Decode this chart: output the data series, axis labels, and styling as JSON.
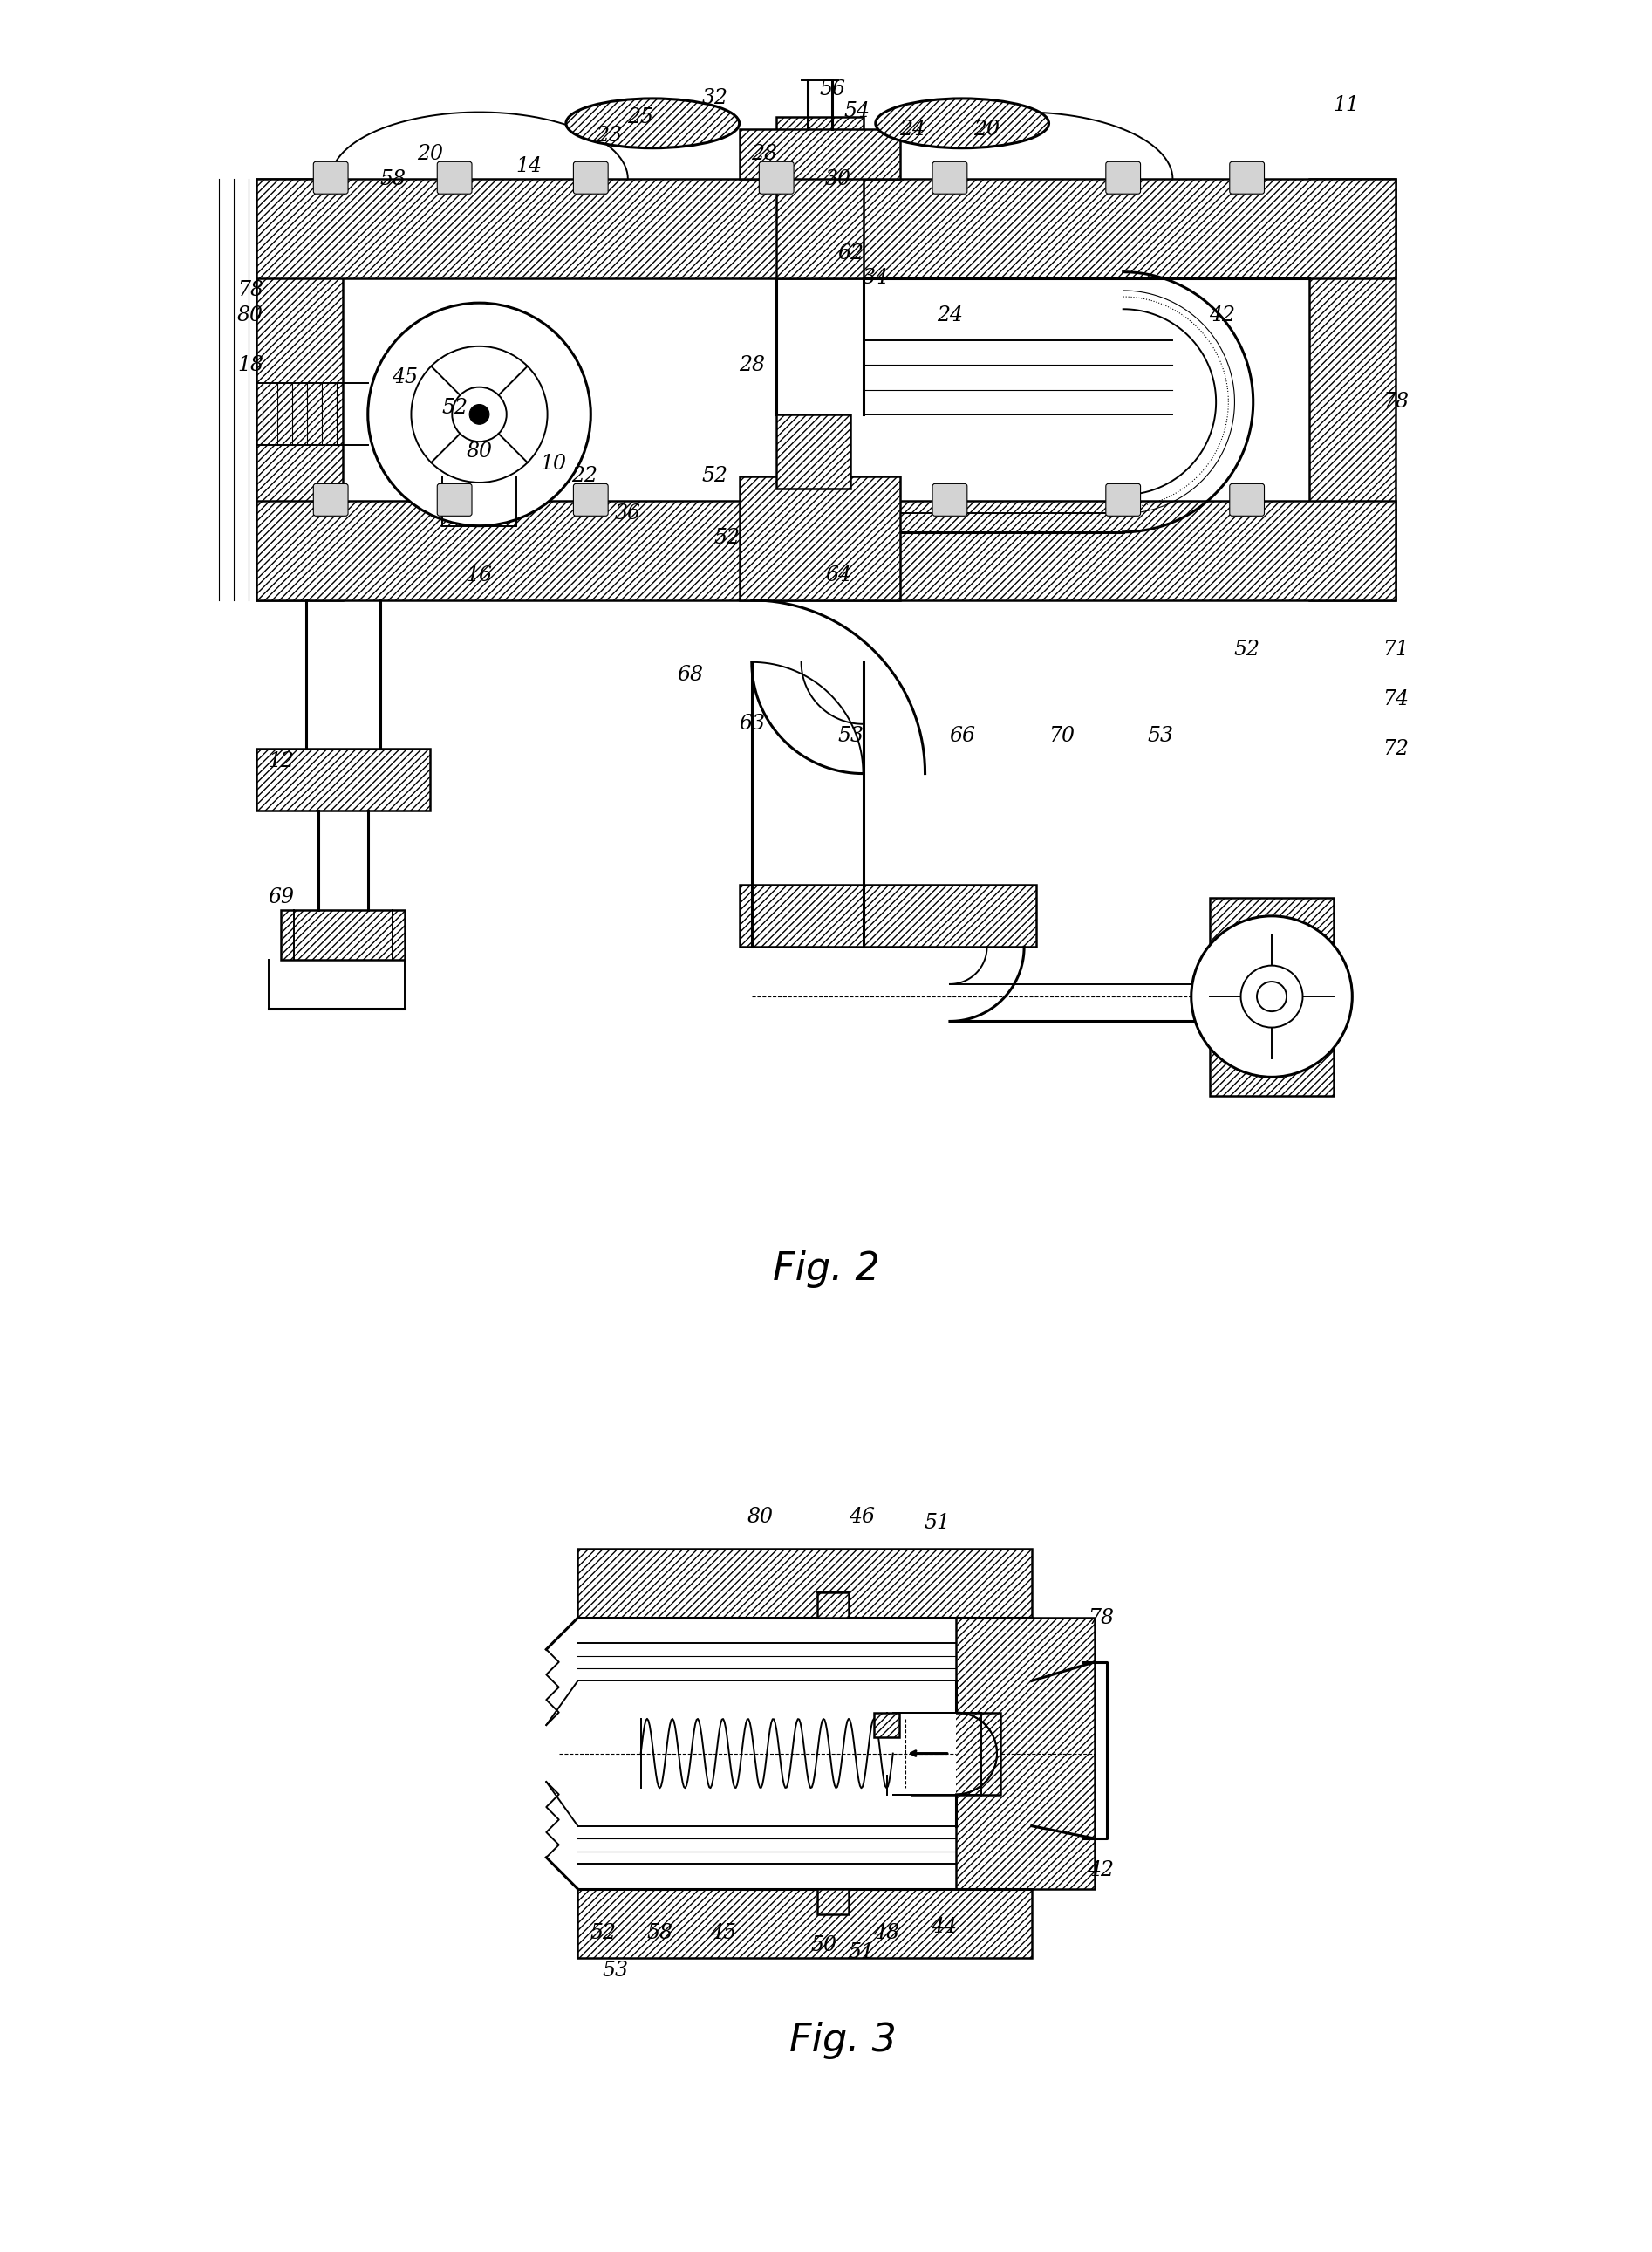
{
  "bg_color": "#ffffff",
  "lc": "#000000",
  "fig2_caption": "Fig. 2",
  "fig3_caption": "Fig. 3",
  "caption_fontsize": 32,
  "label_fontsize": 17,
  "lw_thick": 2.2,
  "lw_med": 1.4,
  "lw_thin": 0.8,
  "fig2_labels": [
    [
      50.5,
      98.2,
      "56"
    ],
    [
      52.5,
      96.5,
      "54"
    ],
    [
      41,
      97.5,
      "32"
    ],
    [
      35,
      96,
      "25"
    ],
    [
      32.5,
      94.5,
      "23"
    ],
    [
      57,
      95,
      "24"
    ],
    [
      63,
      95,
      "20"
    ],
    [
      92,
      97,
      "11"
    ],
    [
      18,
      93,
      "20"
    ],
    [
      15,
      91,
      "58"
    ],
    [
      26,
      92,
      "14"
    ],
    [
      45,
      93,
      "28"
    ],
    [
      51,
      91,
      "30"
    ],
    [
      3.5,
      82,
      "78"
    ],
    [
      3.5,
      80,
      "80"
    ],
    [
      3.5,
      76,
      "18"
    ],
    [
      16,
      75,
      "45"
    ],
    [
      20,
      72.5,
      "52"
    ],
    [
      22,
      69,
      "80"
    ],
    [
      28,
      68,
      "10"
    ],
    [
      30.5,
      67,
      "22"
    ],
    [
      34,
      64,
      "36"
    ],
    [
      22,
      59,
      "16"
    ],
    [
      52,
      85,
      "62"
    ],
    [
      54,
      83,
      "34"
    ],
    [
      60,
      80,
      "24"
    ],
    [
      82,
      80,
      "42"
    ],
    [
      96,
      73,
      "78"
    ],
    [
      44,
      76,
      "28"
    ],
    [
      41,
      67,
      "52"
    ],
    [
      42,
      62,
      "52"
    ],
    [
      39,
      51,
      "68"
    ],
    [
      44,
      47,
      "63"
    ],
    [
      52,
      46,
      "53"
    ],
    [
      61,
      46,
      "66"
    ],
    [
      69,
      46,
      "70"
    ],
    [
      77,
      46,
      "53"
    ],
    [
      84,
      53,
      "52"
    ],
    [
      96,
      53,
      "71"
    ],
    [
      96,
      49,
      "74"
    ],
    [
      96,
      45,
      "72"
    ],
    [
      51,
      59,
      "64"
    ],
    [
      6,
      44,
      "12"
    ],
    [
      6,
      33,
      "69"
    ]
  ],
  "fig3_labels": [
    [
      37,
      88,
      "80"
    ],
    [
      53,
      88,
      "46"
    ],
    [
      65,
      87,
      "51"
    ],
    [
      91,
      72,
      "78"
    ],
    [
      91,
      32,
      "42"
    ],
    [
      12,
      22,
      "52"
    ],
    [
      14,
      16,
      "53"
    ],
    [
      21,
      22,
      "58"
    ],
    [
      31,
      22,
      "45"
    ],
    [
      47,
      20,
      "50"
    ],
    [
      53,
      19,
      "51"
    ],
    [
      57,
      22,
      "48"
    ],
    [
      66,
      23,
      "44"
    ]
  ]
}
